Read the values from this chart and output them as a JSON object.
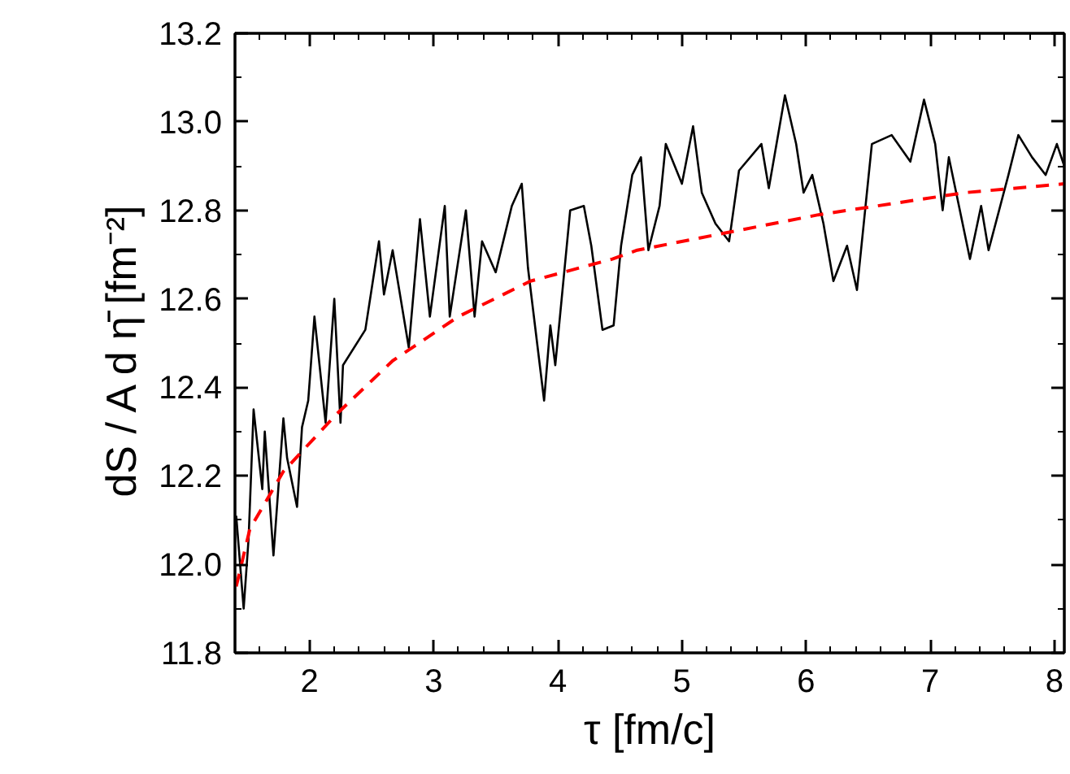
{
  "chart_data": {
    "type": "line",
    "xlabel": "τ [fm/c]",
    "ylabel": "dS / A d η̄  [fm⁻²]",
    "xlim": [
      1.4,
      8.08
    ],
    "ylim": [
      11.8,
      13.2
    ],
    "xticks": [
      2,
      3,
      4,
      5,
      6,
      7,
      8
    ],
    "yticks": [
      11.8,
      {
        "value": 12,
        "label": "12.0"
      },
      12.2,
      12.4,
      12.6,
      12.8,
      {
        "value": 13,
        "label": "13.0"
      },
      13.2
    ],
    "grid": false,
    "marker": "none",
    "series": [
      {
        "color": "#000000",
        "line_style": "solid",
        "x": [
          1.41,
          1.47,
          1.51,
          1.55,
          1.62,
          1.64,
          1.71,
          1.79,
          1.82,
          1.9,
          1.94,
          1.99,
          2.04,
          2.13,
          2.2,
          2.25,
          2.27,
          2.45,
          2.56,
          2.6,
          2.67,
          2.8,
          2.89,
          2.97,
          3.09,
          3.13,
          3.26,
          3.33,
          3.39,
          3.5,
          3.63,
          3.71,
          3.76,
          3.89,
          3.94,
          3.98,
          4.1,
          4.21,
          4.27,
          4.36,
          4.45,
          4.51,
          4.6,
          4.67,
          4.73,
          4.82,
          4.87,
          5.0,
          5.09,
          5.16,
          5.27,
          5.38,
          5.46,
          5.64,
          5.7,
          5.83,
          5.92,
          5.98,
          6.05,
          6.14,
          6.22,
          6.33,
          6.41,
          6.53,
          6.69,
          6.84,
          6.95,
          7.04,
          7.1,
          7.15,
          7.32,
          7.41,
          7.47,
          7.63,
          7.71,
          7.82,
          7.93,
          8.02,
          8.08
        ],
        "values": [
          12.11,
          11.9,
          12.06,
          12.35,
          12.17,
          12.3,
          12.02,
          12.33,
          12.24,
          12.13,
          12.31,
          12.37,
          12.56,
          12.32,
          12.6,
          12.32,
          12.45,
          12.53,
          12.73,
          12.61,
          12.71,
          12.49,
          12.78,
          12.56,
          12.81,
          12.56,
          12.8,
          12.56,
          12.73,
          12.66,
          12.81,
          12.86,
          12.67,
          12.37,
          12.54,
          12.45,
          12.8,
          12.81,
          12.72,
          12.53,
          12.54,
          12.72,
          12.88,
          12.92,
          12.71,
          12.81,
          12.95,
          12.86,
          12.99,
          12.84,
          12.77,
          12.73,
          12.89,
          12.95,
          12.85,
          13.06,
          12.95,
          12.84,
          12.88,
          12.77,
          12.64,
          12.72,
          12.62,
          12.95,
          12.97,
          12.91,
          13.05,
          12.95,
          12.8,
          12.92,
          12.69,
          12.81,
          12.71,
          12.88,
          12.97,
          12.92,
          12.88,
          12.95,
          12.9
        ]
      },
      {
        "color": "#ff0000",
        "line_style": "dashed",
        "x": [
          1.41,
          1.52,
          1.79,
          2.22,
          2.67,
          3.2,
          3.78,
          4.44,
          4.64,
          6.1,
          7.28,
          8.08
        ],
        "values": [
          11.95,
          12.08,
          12.21,
          12.34,
          12.46,
          12.56,
          12.64,
          12.69,
          12.71,
          12.79,
          12.84,
          12.86
        ]
      }
    ]
  }
}
